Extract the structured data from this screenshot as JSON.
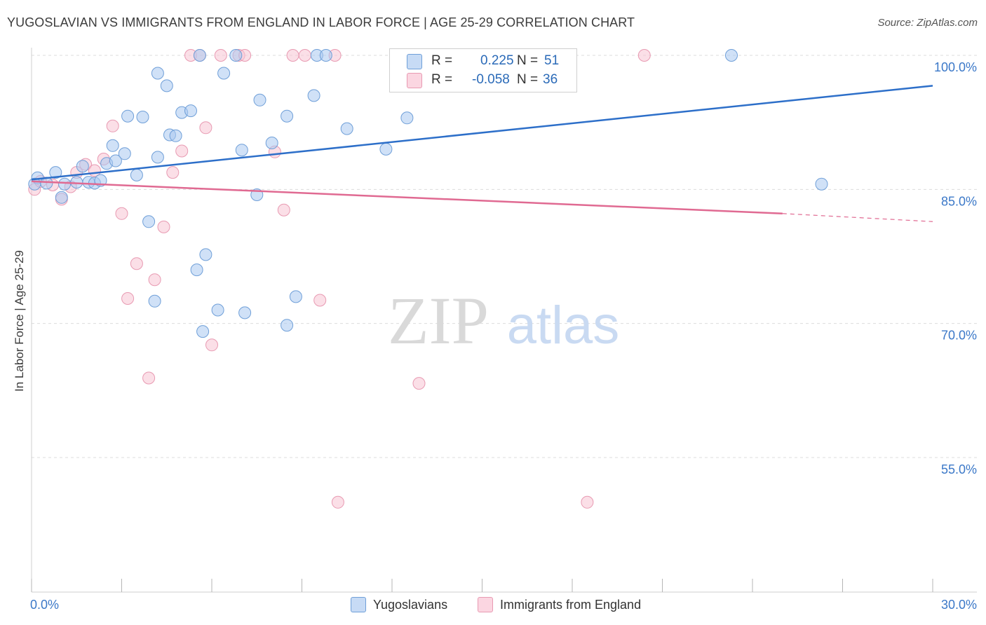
{
  "title": "YUGOSLAVIAN VS IMMIGRANTS FROM ENGLAND IN LABOR FORCE | AGE 25-29 CORRELATION CHART",
  "source": "Source: ZipAtlas.com",
  "watermark": {
    "zip": "ZIP",
    "atlas": "atlas"
  },
  "stats": {
    "rows": [
      {
        "r_label": "R =",
        "r_value": "0.225",
        "n_label": "N =",
        "n_value": "51",
        "color": "#a9c8f0",
        "border": "#6f9fd8"
      },
      {
        "r_label": "R =",
        "r_value": "-0.058",
        "n_label": "N =",
        "n_value": "36",
        "color": "#f7c5d4",
        "border": "#e89ab2"
      }
    ]
  },
  "legend": [
    {
      "label": "Yugoslavians",
      "color": "#a9c8f0",
      "border": "#6f9fd8"
    },
    {
      "label": "Immigrants from England",
      "color": "#f7c5d4",
      "border": "#e89ab2"
    }
  ],
  "chart_data": {
    "type": "scatter",
    "title": "YUGOSLAVIAN VS IMMIGRANTS FROM ENGLAND IN LABOR FORCE | AGE 25-29 CORRELATION CHART",
    "xlabel": "",
    "ylabel": "In Labor Force | Age 25-29",
    "xlim": [
      0,
      30
    ],
    "ylim": [
      40,
      101
    ],
    "x_tick_labels": [
      {
        "value": 0,
        "label": "0.0%"
      },
      {
        "value": 30,
        "label": "30.0%"
      }
    ],
    "y_tick_labels": [
      {
        "value": 100,
        "label": "100.0%"
      },
      {
        "value": 85,
        "label": "85.0%"
      },
      {
        "value": 70,
        "label": "70.0%"
      },
      {
        "value": 55,
        "label": "55.0%"
      }
    ],
    "grid": true,
    "legend_position": "bottom-center",
    "series": [
      {
        "name": "Yugoslavians",
        "color": "#a9c8f0",
        "edge": "#6f9fd8",
        "points": [
          [
            0.2,
            86.3
          ],
          [
            0.5,
            85.7
          ],
          [
            0.8,
            86.9
          ],
          [
            1.0,
            84.1
          ],
          [
            1.1,
            85.6
          ],
          [
            1.5,
            85.8
          ],
          [
            1.7,
            87.6
          ],
          [
            1.9,
            85.8
          ],
          [
            2.1,
            85.7
          ],
          [
            2.3,
            86.0
          ],
          [
            2.5,
            87.9
          ],
          [
            2.7,
            89.9
          ],
          [
            2.8,
            88.2
          ],
          [
            3.1,
            89.0
          ],
          [
            3.2,
            93.2
          ],
          [
            3.5,
            86.6
          ],
          [
            3.7,
            93.1
          ],
          [
            3.9,
            81.4
          ],
          [
            4.1,
            72.5
          ],
          [
            4.2,
            88.6
          ],
          [
            4.5,
            96.6
          ],
          [
            4.6,
            91.1
          ],
          [
            4.8,
            91.0
          ],
          [
            5.0,
            93.6
          ],
          [
            5.3,
            93.8
          ],
          [
            5.5,
            76.0
          ],
          [
            5.6,
            100.0
          ],
          [
            5.7,
            69.1
          ],
          [
            5.8,
            77.7
          ],
          [
            6.2,
            71.5
          ],
          [
            6.4,
            98.0
          ],
          [
            6.8,
            100.0
          ],
          [
            7.0,
            89.4
          ],
          [
            7.1,
            71.2
          ],
          [
            7.5,
            84.4
          ],
          [
            7.6,
            95.0
          ],
          [
            8.0,
            90.2
          ],
          [
            8.5,
            93.2
          ],
          [
            8.5,
            69.8
          ],
          [
            8.8,
            73.0
          ],
          [
            9.4,
            95.5
          ],
          [
            9.5,
            100.0
          ],
          [
            9.8,
            100.0
          ],
          [
            10.5,
            91.8
          ],
          [
            11.8,
            89.5
          ],
          [
            12.5,
            93.0
          ],
          [
            13.5,
            100.0
          ],
          [
            23.3,
            100.0
          ],
          [
            26.3,
            85.6
          ],
          [
            0.1,
            85.6
          ],
          [
            4.2,
            98.0
          ]
        ],
        "trend": {
          "x": [
            0,
            30
          ],
          "y": [
            86.1,
            96.6
          ]
        }
      },
      {
        "name": "Immigrants from England",
        "color": "#f7c5d4",
        "edge": "#e89ab2",
        "points": [
          [
            0.1,
            85.0
          ],
          [
            0.3,
            85.9
          ],
          [
            0.7,
            85.5
          ],
          [
            1.0,
            83.9
          ],
          [
            1.3,
            85.3
          ],
          [
            1.5,
            86.9
          ],
          [
            1.8,
            87.8
          ],
          [
            2.1,
            87.1
          ],
          [
            2.4,
            88.4
          ],
          [
            2.7,
            92.1
          ],
          [
            3.0,
            82.3
          ],
          [
            3.2,
            72.8
          ],
          [
            3.5,
            76.7
          ],
          [
            3.9,
            63.9
          ],
          [
            4.1,
            74.9
          ],
          [
            4.4,
            80.8
          ],
          [
            4.7,
            86.9
          ],
          [
            5.0,
            89.3
          ],
          [
            5.3,
            100.0
          ],
          [
            5.6,
            100.0
          ],
          [
            5.8,
            91.9
          ],
          [
            6.0,
            67.6
          ],
          [
            6.3,
            100.0
          ],
          [
            6.9,
            100.0
          ],
          [
            7.1,
            100.0
          ],
          [
            8.1,
            89.2
          ],
          [
            8.4,
            82.7
          ],
          [
            8.7,
            100.0
          ],
          [
            9.1,
            100.0
          ],
          [
            9.6,
            72.6
          ],
          [
            10.1,
            100.0
          ],
          [
            10.2,
            50.0
          ],
          [
            12.7,
            100.0
          ],
          [
            12.9,
            63.3
          ],
          [
            18.5,
            50.0
          ],
          [
            20.4,
            100.0
          ]
        ],
        "trend": {
          "x": [
            0,
            25
          ],
          "y": [
            85.9,
            82.3
          ]
        },
        "trend_dashed": {
          "x": [
            25,
            30
          ],
          "y": [
            82.3,
            81.4
          ]
        }
      }
    ]
  }
}
